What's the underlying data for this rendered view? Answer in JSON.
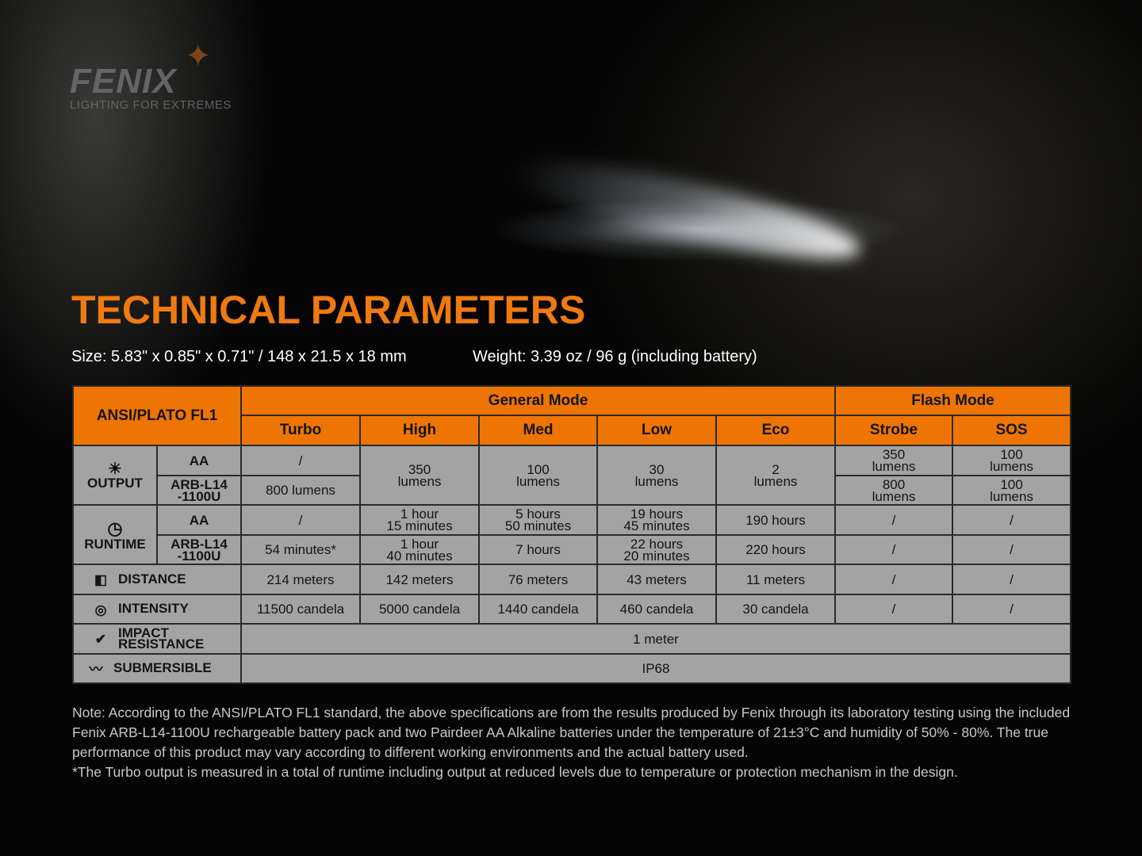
{
  "brand": {
    "name": "FENIX",
    "tagline": "LIGHTING FOR EXTREMES"
  },
  "title": "TECHNICAL PARAMETERS",
  "size": "Size: 5.83\" x 0.85\" x 0.71\" / 148 x 21.5 x 18 mm",
  "weight": "Weight: 3.39 oz / 96 g (including battery)",
  "colors": {
    "accent": "#ee7503",
    "cell": "#a3a3a3"
  },
  "table": {
    "standard": "ANSI/PLATO FL1",
    "groups": [
      "General Mode",
      "Flash Mode"
    ],
    "modes": [
      "Turbo",
      "High",
      "Med",
      "Low",
      "Eco",
      "Strobe",
      "SOS"
    ],
    "output": {
      "label": "OUTPUT",
      "icon": "sun-burst-icon",
      "aa_label": "AA",
      "arb_label": "ARB-L14\n-1100U",
      "turbo_aa": "/",
      "turbo_arb": "800 lumens",
      "high": "350\nlumens",
      "med": "100\nlumens",
      "low": "30\nlumens",
      "eco": "2\nlumens",
      "strobe_aa": "350\nlumens",
      "strobe_arb": "800\nlumens",
      "sos_aa": "100\nlumens",
      "sos_arb": "100\nlumens"
    },
    "runtime": {
      "label": "RUNTIME",
      "icon": "clock-icon",
      "aa_label": "AA",
      "arb_label": "ARB-L14\n-1100U",
      "aa": [
        "/",
        "1 hour\n15 minutes",
        "5 hours\n50 minutes",
        "19 hours\n45 minutes",
        "190 hours",
        "/",
        "/"
      ],
      "arb": [
        "54 minutes*",
        "1 hour\n40 minutes",
        "7 hours",
        "22 hours\n20 minutes",
        "220 hours",
        "/",
        "/"
      ]
    },
    "distance": {
      "label": "DISTANCE",
      "icon": "distance-icon",
      "values": [
        "214 meters",
        "142 meters",
        "76 meters",
        "43 meters",
        "11 meters",
        "/",
        "/"
      ]
    },
    "intensity": {
      "label": "INTENSITY",
      "icon": "target-icon",
      "values": [
        "11500 candela",
        "5000 candela",
        "1440 candela",
        "460 candela",
        "30 candela",
        "/",
        "/"
      ]
    },
    "impact": {
      "label": "IMPACT\nRESISTANCE",
      "icon": "impact-check-icon",
      "value": "1 meter"
    },
    "submersible": {
      "label": "SUBMERSIBLE",
      "icon": "water-drop-icon",
      "value": "IP68"
    }
  },
  "note": "Note: According to the ANSI/PLATO FL1 standard, the above specifications are from the results produced by Fenix through its laboratory testing using the included Fenix ARB-L14-1100U rechargeable battery pack and two Pairdeer AA Alkaline batteries under the temperature of 21±3°C and humidity of 50% - 80%. The true performance of this product may vary according to different working environments and the actual battery used.",
  "footnote": "*The Turbo output is measured in a total of runtime including output at reduced levels due to temperature or protection mechanism in the design."
}
